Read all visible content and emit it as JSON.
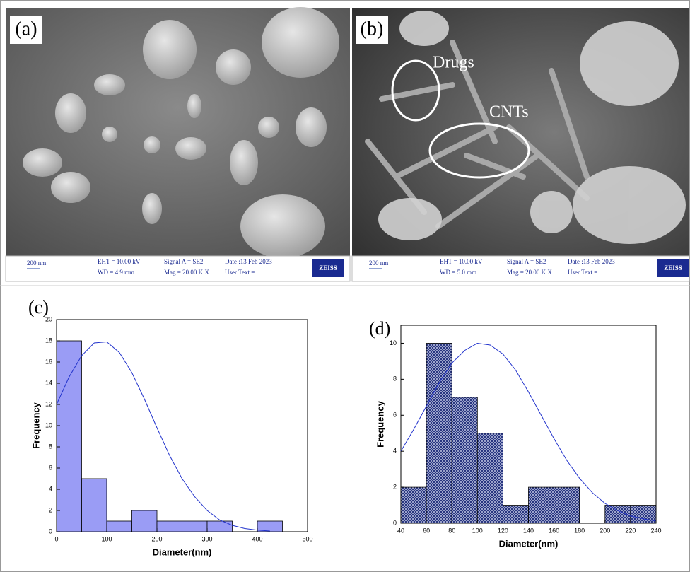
{
  "images": [
    {
      "label": "(a)",
      "scale": "200 nm",
      "eht": "EHT = 10.00 kV",
      "wd": "WD = 4.9 mm",
      "signal": "Signal A = SE2",
      "mag": "Mag = 20.00 K X",
      "date": "Date :13 Feb 2023",
      "user": "User Text =",
      "brand": "ZEISS"
    },
    {
      "label": "(b)",
      "annotations": [
        "Drugs",
        "CNTs"
      ],
      "scale": "200 nm",
      "eht": "EHT = 10.00 kV",
      "wd": "WD = 5.0 mm",
      "signal": "Signal A = SE2",
      "mag": "Mag = 20.00 K X",
      "date": "Date :13 Feb 2023",
      "user": "User Text =",
      "brand": "ZEISS"
    }
  ],
  "chart_data": [
    {
      "type": "histogram",
      "panel_label": "(c)",
      "x_label": "Diameter(nm)",
      "y_label": "Frequency",
      "bins": [
        0,
        50,
        100,
        150,
        200,
        250,
        300,
        350,
        400,
        450
      ],
      "values": [
        18,
        5,
        1,
        2,
        1,
        1,
        1,
        0,
        1
      ],
      "color": "#9a9cf5",
      "hatch": false,
      "xlim": [
        0,
        500
      ],
      "xticks": [
        0,
        100,
        200,
        300,
        400,
        500
      ],
      "ylim": [
        0,
        20
      ],
      "yticks": [
        0,
        2,
        4,
        6,
        8,
        10,
        12,
        14,
        16,
        18,
        20
      ],
      "fit": {
        "color": "#2233cc",
        "x": [
          0,
          25,
          50,
          75,
          100,
          125,
          150,
          175,
          200,
          225,
          250,
          275,
          300,
          325,
          350,
          375,
          400,
          425
        ],
        "values": [
          12.0,
          14.6,
          16.6,
          17.8,
          17.9,
          16.9,
          15.0,
          12.5,
          9.8,
          7.2,
          5.0,
          3.3,
          2.0,
          1.1,
          0.6,
          0.3,
          0.15,
          0.07
        ]
      }
    },
    {
      "type": "histogram",
      "panel_label": "(d)",
      "x_label": "Diameter(nm)",
      "y_label": "Frequency",
      "bins": [
        40,
        60,
        80,
        100,
        120,
        140,
        160,
        180,
        200,
        220,
        240
      ],
      "values": [
        2,
        10,
        7,
        5,
        1,
        2,
        2,
        0,
        1,
        1
      ],
      "color": "#1c2a78",
      "hatch": true,
      "xlim": [
        40,
        240
      ],
      "xticks": [
        40,
        60,
        80,
        100,
        120,
        140,
        160,
        180,
        200,
        220,
        240
      ],
      "ylim": [
        0,
        11
      ],
      "yticks": [
        0,
        2,
        4,
        6,
        8,
        10
      ],
      "fit": {
        "color": "#2233cc",
        "x": [
          40,
          50,
          60,
          70,
          80,
          90,
          100,
          110,
          120,
          130,
          140,
          150,
          160,
          170,
          180,
          190,
          200,
          210,
          220,
          230,
          240
        ],
        "values": [
          4.0,
          5.2,
          6.5,
          7.8,
          8.9,
          9.6,
          10.0,
          9.9,
          9.4,
          8.5,
          7.3,
          6.0,
          4.7,
          3.5,
          2.5,
          1.7,
          1.1,
          0.7,
          0.4,
          0.24,
          0.13
        ]
      }
    }
  ]
}
